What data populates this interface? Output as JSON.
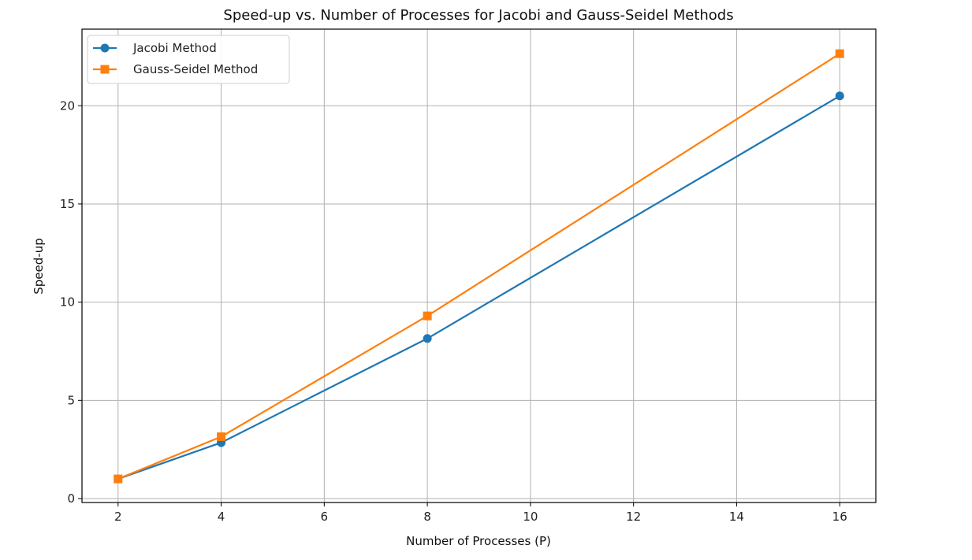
{
  "chart_data": {
    "type": "line",
    "title": "Speed-up vs. Number of Processes for Jacobi and Gauss-Seidel Methods",
    "xlabel": "Number of Processes (P)",
    "ylabel": "Speed-up",
    "xlim": [
      1.3,
      16.7
    ],
    "ylim": [
      -0.2,
      23.9
    ],
    "xticks": [
      2,
      4,
      6,
      8,
      10,
      12,
      14,
      16
    ],
    "yticks": [
      0,
      5,
      10,
      15,
      20
    ],
    "grid": true,
    "legend_position": "top-left",
    "series": [
      {
        "name": "Jacobi Method",
        "color": "#1f77b4",
        "marker": "circle",
        "x": [
          2,
          4,
          8,
          16
        ],
        "y": [
          1.0,
          2.85,
          8.15,
          20.5
        ]
      },
      {
        "name": "Gauss-Seidel Method",
        "color": "#ff7f0e",
        "marker": "square",
        "x": [
          2,
          4,
          8,
          16
        ],
        "y": [
          1.0,
          3.15,
          9.3,
          22.65
        ]
      }
    ]
  }
}
